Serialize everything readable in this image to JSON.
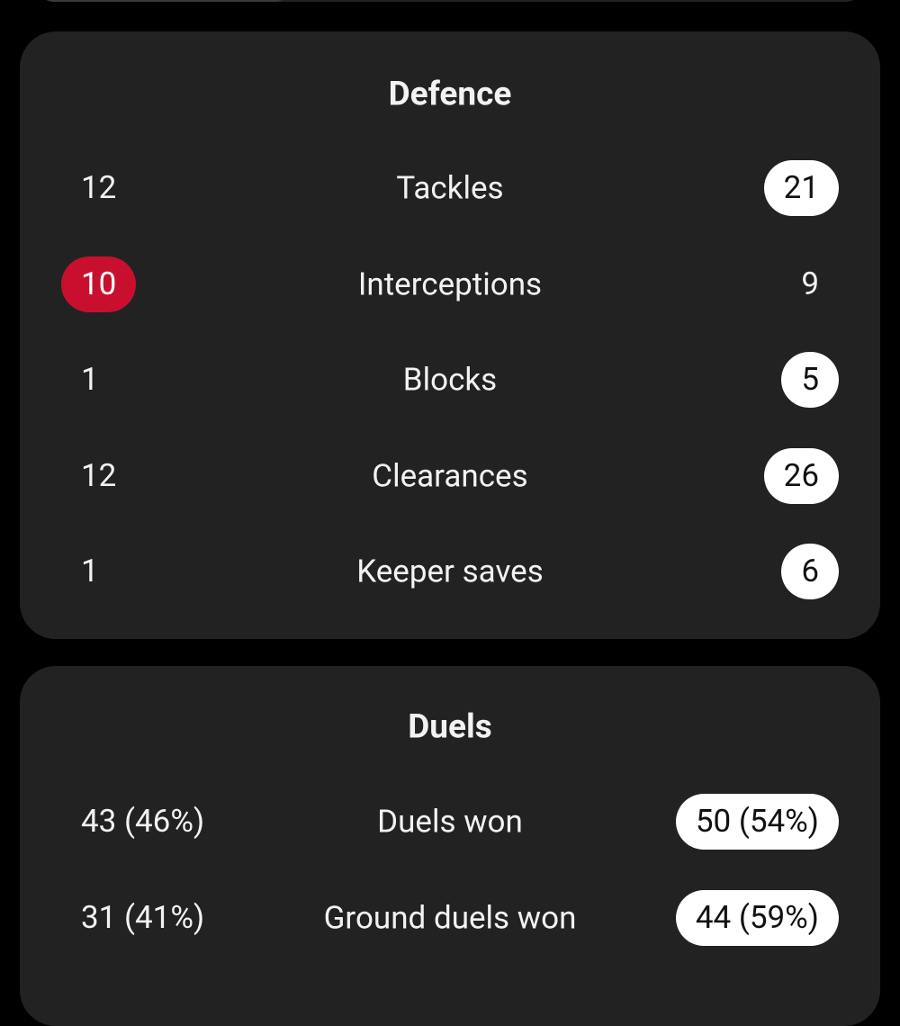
{
  "sections": [
    {
      "title": "Defence",
      "rows": [
        {
          "home": "12",
          "label": "Tackles",
          "away": "21",
          "highlight": "away"
        },
        {
          "home": "10",
          "label": "Interceptions",
          "away": "9",
          "highlight": "home"
        },
        {
          "home": "1",
          "label": "Blocks",
          "away": "5",
          "highlight": "away"
        },
        {
          "home": "12",
          "label": "Clearances",
          "away": "26",
          "highlight": "away"
        },
        {
          "home": "1",
          "label": "Keeper saves",
          "away": "6",
          "highlight": "away"
        }
      ]
    },
    {
      "title": "Duels",
      "rows": [
        {
          "home": "43 (46%)",
          "label": "Duels won",
          "away": "50 (54%)",
          "highlight": "away"
        },
        {
          "home": "31 (41%)",
          "label": "Ground duels won",
          "away": "44 (59%)",
          "highlight": "away"
        }
      ]
    }
  ]
}
